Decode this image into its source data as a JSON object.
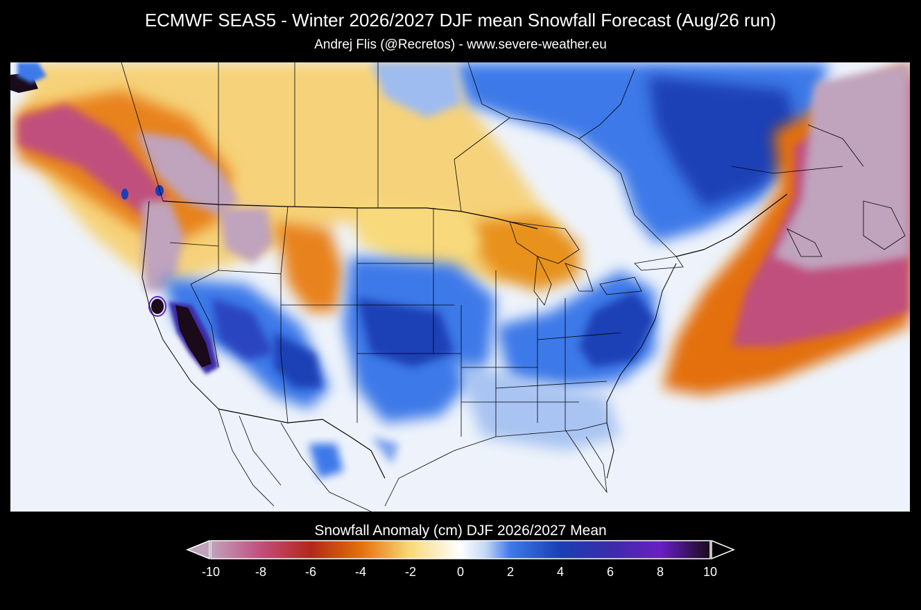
{
  "header": {
    "title": "ECMWF SEAS5 - Winter 2026/2027 DJF mean Snowfall Forecast (Aug/26 run)",
    "subtitle": "Andrej Flis (@Recretos) - www.severe-weather.eu"
  },
  "map": {
    "region": "North America",
    "variable": "Snowfall anomaly",
    "ocean_color": "#eef3fb",
    "border_color": "#000000"
  },
  "colorbar": {
    "title": "Snowfall Anomaly (cm) DJF 2026/2027 Mean",
    "ticks": [
      "-10",
      "-8",
      "-6",
      "-4",
      "-2",
      "0",
      "2",
      "4",
      "6",
      "8",
      "10"
    ],
    "min": -10,
    "max": 10,
    "stops": [
      {
        "value": -10,
        "color": "#c0a3bd"
      },
      {
        "value": -8,
        "color": "#c04f7d"
      },
      {
        "value": -6,
        "color": "#b3271a"
      },
      {
        "value": -4,
        "color": "#e3700b"
      },
      {
        "value": -2,
        "color": "#f8da7c"
      },
      {
        "value": 0,
        "color": "#ffffff"
      },
      {
        "value": 1,
        "color": "#c3d8f6"
      },
      {
        "value": 2,
        "color": "#3e79e8"
      },
      {
        "value": 4,
        "color": "#1a3fb5"
      },
      {
        "value": 6,
        "color": "#3a2ca6"
      },
      {
        "value": 8,
        "color": "#6a1ec4"
      },
      {
        "value": 10,
        "color": "#1a0a1a"
      }
    ],
    "extend_low_color": "#c0a3bd",
    "extend_high_color": "#000000"
  }
}
